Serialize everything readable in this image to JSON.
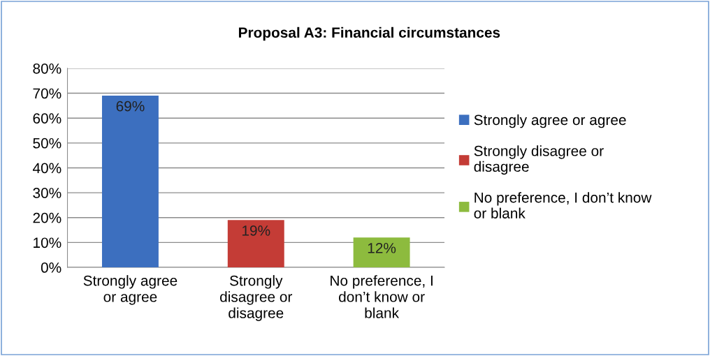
{
  "chart_data": {
    "type": "bar",
    "title": "Proposal A3: Financial circumstances",
    "categories": [
      "Strongly agree\nor agree",
      "Strongly\ndisagree or\ndisagree",
      "No preference, I\ndon’t know or\nblank"
    ],
    "series": [
      {
        "name": "Strongly agree or agree",
        "color": "#3c6fbf",
        "values": [
          69,
          null,
          null
        ],
        "value_labels": [
          "69%",
          null,
          null
        ]
      },
      {
        "name": "Strongly disagree or\ndisagree",
        "color": "#c43c36",
        "values": [
          null,
          19,
          null
        ],
        "value_labels": [
          null,
          "19%",
          null
        ]
      },
      {
        "name": "No preference, I don’t know\nor blank",
        "color": "#8dbb3e",
        "values": [
          null,
          null,
          12
        ],
        "value_labels": [
          null,
          null,
          "12%"
        ]
      }
    ],
    "ylim": [
      0,
      80
    ],
    "yticks": [
      {
        "value": 0,
        "label": "0%"
      },
      {
        "value": 10,
        "label": "10%"
      },
      {
        "value": 20,
        "label": "20%"
      },
      {
        "value": 30,
        "label": "30%"
      },
      {
        "value": 40,
        "label": "40%"
      },
      {
        "value": 50,
        "label": "50%"
      },
      {
        "value": 60,
        "label": "60%"
      },
      {
        "value": 70,
        "label": "70%"
      },
      {
        "value": 80,
        "label": "80%"
      }
    ],
    "grid": "y",
    "legend": "right"
  }
}
